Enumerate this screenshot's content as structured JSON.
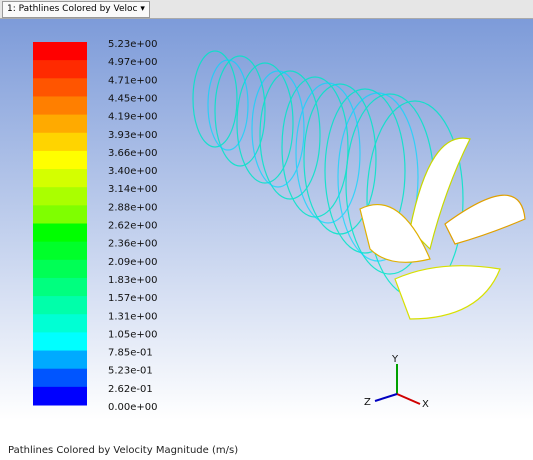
{
  "tab": {
    "label": "1: Pathlines Colored by Veloc"
  },
  "colorbar": {
    "labels": [
      "5.23e+00",
      "4.97e+00",
      "4.71e+00",
      "4.45e+00",
      "4.19e+00",
      "3.93e+00",
      "3.66e+00",
      "3.40e+00",
      "3.14e+00",
      "2.88e+00",
      "2.62e+00",
      "2.36e+00",
      "2.09e+00",
      "1.83e+00",
      "1.57e+00",
      "1.31e+00",
      "1.05e+00",
      "7.85e-01",
      "5.23e-01",
      "2.62e-01",
      "0.00e+00"
    ],
    "colors": [
      "#ff0000",
      "#ff2a00",
      "#ff5500",
      "#ff7f00",
      "#ffaa00",
      "#ffd400",
      "#ffff00",
      "#d4ff00",
      "#aaff00",
      "#7fff00",
      "#00ff00",
      "#00ff2a",
      "#00ff55",
      "#00ff7f",
      "#00ffaa",
      "#00ffd4",
      "#00ffff",
      "#00aaff",
      "#0055ff",
      "#0000ff"
    ]
  },
  "triad": {
    "x": "X",
    "y": "Y",
    "z": "Z"
  },
  "footer": {
    "title": "Pathlines Colored by Velocity Magnitude (m/s)"
  }
}
